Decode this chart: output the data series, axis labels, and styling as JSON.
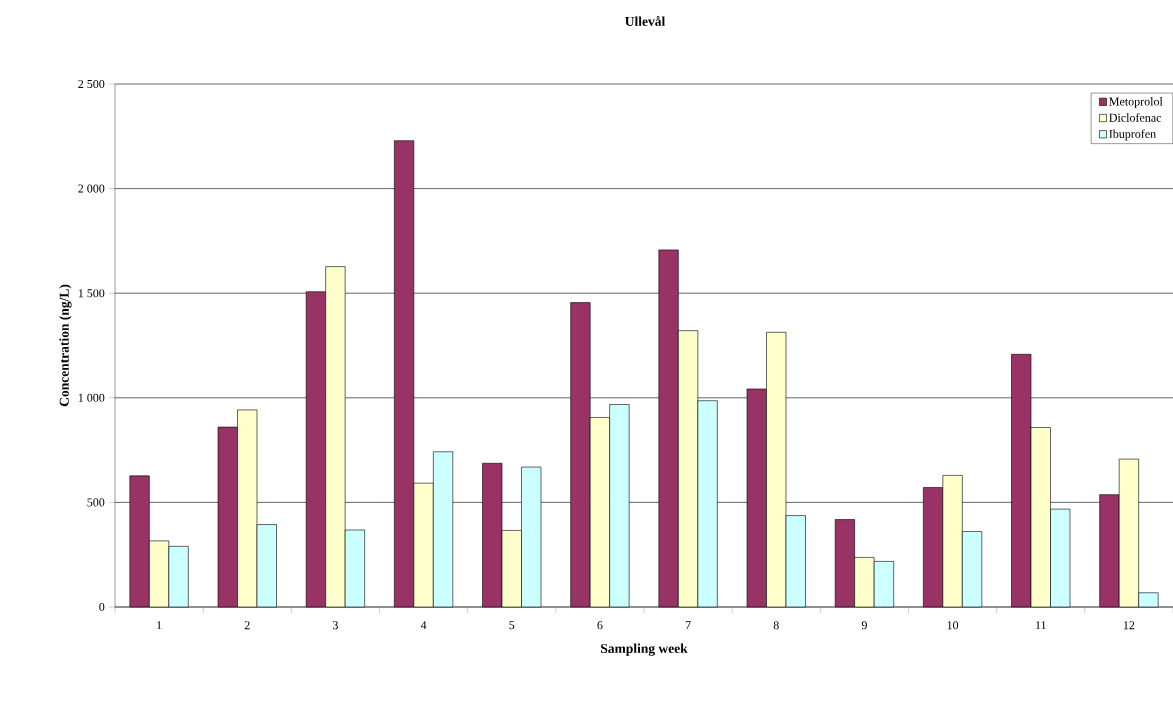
{
  "chart_data": {
    "type": "bar",
    "title": "Ullevål",
    "xlabel": "Sampling week",
    "ylabel": "Concentration (ng/L)",
    "categories": [
      "1",
      "2",
      "3",
      "4",
      "5",
      "6",
      "7",
      "8",
      "9",
      "10",
      "11",
      "12"
    ],
    "series": [
      {
        "name": "Metoprolol",
        "color": "#993366",
        "values": [
          627,
          860,
          1507,
          2229,
          687,
          1455,
          1707,
          1042,
          418,
          571,
          1208,
          537
        ]
      },
      {
        "name": "Diclofenac",
        "color": "#ffffcc",
        "values": [
          316,
          942,
          1627,
          592,
          366,
          906,
          1321,
          1313,
          237,
          629,
          858,
          707
        ]
      },
      {
        "name": "Ibuprofen",
        "color": "#ccffff",
        "values": [
          290,
          394,
          368,
          742,
          669,
          968,
          986,
          437,
          218,
          361,
          468,
          68
        ]
      }
    ],
    "ylim": [
      0,
      2500
    ],
    "yticks": [
      0,
      500,
      {
        "value": 1000,
        "label": "1 000"
      },
      {
        "value": 1500,
        "label": "1 500"
      },
      {
        "value": 2000,
        "label": "2 000"
      },
      {
        "value": 2500,
        "label": "2 500"
      }
    ],
    "grid": "y",
    "legend": "top right"
  }
}
